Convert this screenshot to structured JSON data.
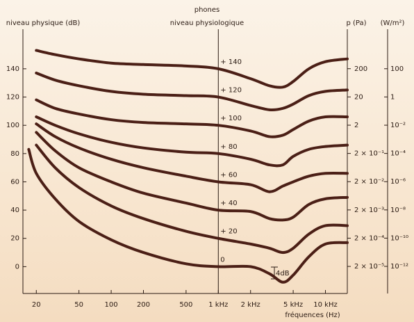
{
  "chart_data": {
    "type": "line",
    "top_title": "phones",
    "subtitle": "niveau physiologique",
    "ylabel": "niveau physique (dB)",
    "y2label": "p (Pa)",
    "y3label": "(W/m²)",
    "xlabel": "fréquences (Hz)",
    "annotation": "4dB",
    "xlog": true,
    "xlim": [
      15,
      16000
    ],
    "xticks": [
      20,
      50,
      100,
      200,
      500,
      {
        "value": 1000,
        "label": "1 kHz"
      },
      {
        "value": 2000,
        "label": "2 kHz"
      },
      {
        "value": 5000,
        "label": "5 kHz"
      },
      {
        "value": 10000,
        "label": "10 kHz"
      }
    ],
    "ylim": [
      -19,
      168
    ],
    "yticks": [
      0,
      20,
      40,
      60,
      80,
      100,
      120,
      140
    ],
    "y2log": true,
    "y2lim": [
      2.2e-06,
      5000
    ],
    "y2ticks": [
      {
        "value": 200,
        "label": "200"
      },
      {
        "value": 20,
        "label": "20"
      },
      {
        "value": 2,
        "label": "2"
      },
      {
        "value": 0.2,
        "label": "2 × 10⁻¹"
      },
      {
        "value": 0.02,
        "label": "2 × 10⁻²"
      },
      {
        "value": 0.002,
        "label": "2 × 10⁻³"
      },
      {
        "value": 0.0002,
        "label": "2 × 10⁻⁴"
      },
      {
        "value": 2e-05,
        "label": "2 × 10⁻⁵"
      }
    ],
    "y3log": true,
    "y3lim": [
      1.2e-14,
      63000
    ],
    "y3ticks": [
      {
        "value": 100,
        "label": "100"
      },
      {
        "value": 1,
        "label": "1"
      },
      {
        "value": 0.01,
        "label": "10⁻²"
      },
      {
        "value": 0.0001,
        "label": "10⁻⁴"
      },
      {
        "value": 1e-06,
        "label": "10⁻⁶"
      },
      {
        "value": 1e-08,
        "label": "10⁻⁸"
      },
      {
        "value": 1e-10,
        "label": "10⁻¹⁰"
      },
      {
        "value": 1e-12,
        "label": "10⁻¹²"
      }
    ],
    "x": [
      17,
      20,
      30,
      50,
      100,
      200,
      500,
      1000,
      2000,
      3000,
      4000,
      5000,
      7000,
      10000,
      16000
    ],
    "series": [
      {
        "name": "0",
        "color": "#4b1f16",
        "values": [
          83,
          66,
          48,
          32,
          19,
          10,
          2,
          0,
          0,
          -5,
          -11,
          -6,
          7,
          16,
          17
        ]
      },
      {
        "name": "+ 20",
        "color": "#4b1f16",
        "values": [
          null,
          86,
          70,
          56,
          43,
          34,
          25,
          20,
          16,
          13,
          10,
          13,
          23,
          29,
          29
        ]
      },
      {
        "name": "+ 40",
        "color": "#4b1f16",
        "values": [
          null,
          95,
          82,
          70,
          60,
          52,
          45,
          40,
          39,
          34,
          33,
          35,
          44,
          48,
          49
        ]
      },
      {
        "name": "+ 60",
        "color": "#4b1f16",
        "values": [
          null,
          101,
          92,
          84,
          76,
          70,
          64,
          60,
          58,
          53,
          57,
          60,
          64,
          66,
          66
        ]
      },
      {
        "name": "+ 80",
        "color": "#4b1f16",
        "values": [
          null,
          106,
          100,
          94,
          88,
          84,
          81,
          80,
          76,
          72,
          72,
          78,
          83,
          85,
          86
        ]
      },
      {
        "name": "+ 100",
        "color": "#4b1f16",
        "values": [
          null,
          118,
          112,
          108,
          104,
          102,
          101,
          100,
          96,
          92,
          93,
          97,
          103,
          106,
          106
        ]
      },
      {
        "name": "+ 120",
        "color": "#4b1f16",
        "values": [
          null,
          137,
          132,
          128,
          124,
          122,
          121,
          120,
          114,
          111,
          112,
          115,
          121,
          124,
          125
        ]
      },
      {
        "name": "+ 140",
        "color": "#4b1f16",
        "values": [
          null,
          153,
          150,
          147,
          144,
          143,
          142,
          140,
          133,
          128,
          127,
          131,
          140,
          145,
          147
        ]
      }
    ]
  }
}
